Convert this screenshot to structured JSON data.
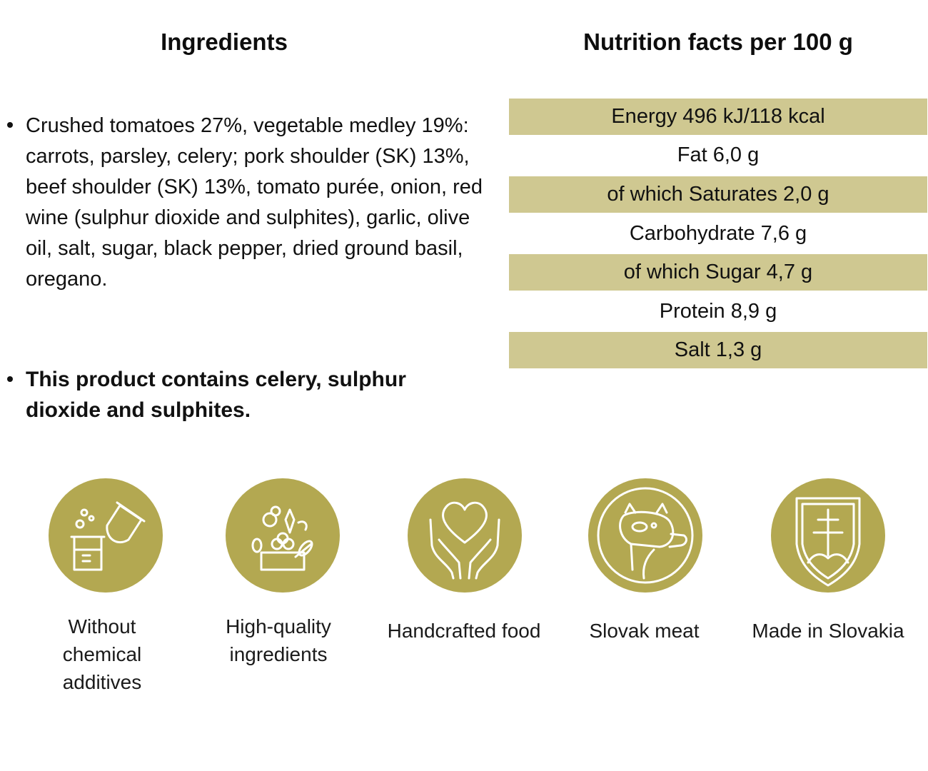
{
  "ingredients": {
    "title": "Ingredients",
    "items": [
      "Crushed tomatoes 27%, vegetable medley 19%: carrots, parsley, celery; pork shoulder (SK) 13%, beef shoulder (SK) 13%, tomato purée, onion, red wine (sulphur dioxide and sulphites), garlic, olive oil, salt, sugar, black pepper, dried ground basil, oregano."
    ],
    "allergen_note": "This product contains celery, sulphur dioxide and sulphites."
  },
  "nutrition": {
    "title": "Nutrition facts per 100 g",
    "rows": [
      "Energy 496 kJ/118 kcal",
      "Fat 6,0 g",
      "of which Saturates 2,0 g",
      "Carbohydrate 7,6 g",
      "of which Sugar 4,7 g",
      "Protein 8,9 g",
      "Salt 1,3 g"
    ],
    "row_shading_color": "#cfc891"
  },
  "badges": [
    {
      "icon": "chemistry-flask-icon",
      "caption": "Without chemical additives"
    },
    {
      "icon": "vegetables-box-icon",
      "caption": "High-quality ingredients"
    },
    {
      "icon": "heart-hands-icon",
      "caption": "Handcrafted food"
    },
    {
      "icon": "pig-cow-icon",
      "caption": "Slovak meat"
    },
    {
      "icon": "slovak-shield-icon",
      "caption": "Made in Slovakia"
    }
  ],
  "badge_color": "#b3a851"
}
